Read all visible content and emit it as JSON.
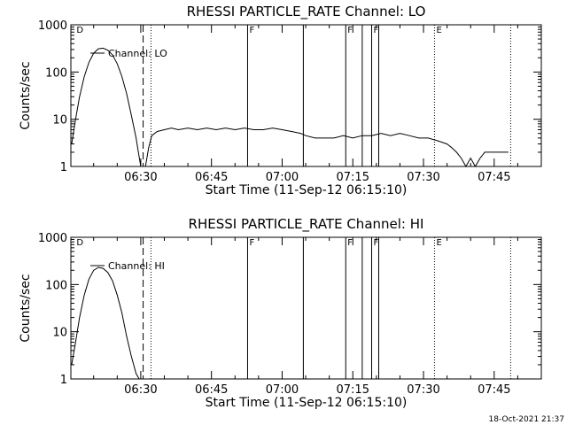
{
  "footer": {
    "timestamp": "18-Oct-2021 21:37"
  },
  "colors": {
    "line": "#000000",
    "background": "#ffffff"
  },
  "chart_data": [
    {
      "type": "line",
      "title": "RHESSI PARTICLE_RATE Channel: LO",
      "xlabel": "Start Time (11-Sep-12 06:15:10)",
      "ylabel": "Counts/sec",
      "y_scale": "log",
      "ylim": [
        1,
        1000
      ],
      "y_ticks": [
        {
          "value": 1,
          "label": "1"
        },
        {
          "value": 10,
          "label": "10"
        },
        {
          "value": 100,
          "label": "100"
        },
        {
          "value": 1000,
          "label": "1000"
        }
      ],
      "xlim": [
        "06:15:10",
        "07:55:00"
      ],
      "x_ticks": [
        "06:30",
        "06:45",
        "07:00",
        "07:15",
        "07:30",
        "07:45"
      ],
      "legend": {
        "label": "Channel: LO",
        "placement": "upper-left"
      },
      "markers": [
        {
          "time": "06:16:00",
          "style": "none",
          "label": "D"
        },
        {
          "time": "06:30:30",
          "style": "dashed",
          "label": ""
        },
        {
          "time": "06:32:10",
          "style": "dotted",
          "label": ""
        },
        {
          "time": "06:52:40",
          "style": "solid",
          "label": "F"
        },
        {
          "time": "07:04:30",
          "style": "solid",
          "label": ""
        },
        {
          "time": "07:13:30",
          "style": "solid",
          "label": "F"
        },
        {
          "time": "07:17:00",
          "style": "solid",
          "label": ""
        },
        {
          "time": "07:19:00",
          "style": "solid",
          "label": "F"
        },
        {
          "time": "07:20:30",
          "style": "solid",
          "label": ""
        },
        {
          "time": "07:32:20",
          "style": "dotted",
          "label": "E"
        },
        {
          "time": "07:48:30",
          "style": "dotted",
          "label": ""
        }
      ],
      "series": [
        {
          "name": "Channel: LO",
          "segments": [
            {
              "x": [
                "06:15:20",
                "06:16:10",
                "06:17:00",
                "06:18:00",
                "06:19:00",
                "06:20:00",
                "06:21:00",
                "06:22:00",
                "06:23:00",
                "06:24:00",
                "06:25:00",
                "06:26:00",
                "06:27:00",
                "06:28:00",
                "06:29:00",
                "06:29:30",
                "06:30:00"
              ],
              "y": [
                3,
                10,
                30,
                80,
                160,
                250,
                310,
                320,
                290,
                230,
                150,
                80,
                35,
                12,
                4,
                2,
                1
              ]
            },
            {
              "x": [
                "06:31:00",
                "06:31:40",
                "06:32:20",
                "06:33:30",
                "06:35:00",
                "06:36:30",
                "06:38:00",
                "06:40:00",
                "06:42:00",
                "06:44:00",
                "06:46:00",
                "06:48:00",
                "06:50:00",
                "06:52:00",
                "06:54:00",
                "06:56:00",
                "06:58:00",
                "07:00:00",
                "07:02:00",
                "07:04:00",
                "07:05:00",
                "07:07:00",
                "07:09:00",
                "07:11:00",
                "07:13:00",
                "07:15:00",
                "07:17:00",
                "07:19:00",
                "07:21:00",
                "07:23:00",
                "07:25:00",
                "07:27:00",
                "07:29:00",
                "07:31:00",
                "07:33:00",
                "07:35:00",
                "07:36:00",
                "07:37:00",
                "07:38:00",
                "07:39:00",
                "07:40:00",
                "07:41:00",
                "07:42:00",
                "07:43:00",
                "07:45:00",
                "07:47:00",
                "07:48:00"
              ],
              "y": [
                1,
                2.5,
                4.5,
                5.5,
                6,
                6.5,
                6,
                6.5,
                6,
                6.5,
                6,
                6.5,
                6,
                6.5,
                6,
                6,
                6.5,
                6,
                5.5,
                5,
                4.5,
                4,
                4,
                4,
                4.5,
                4,
                4.5,
                4.5,
                5,
                4.5,
                5,
                4.5,
                4,
                4,
                3.5,
                3,
                2.5,
                2,
                1.5,
                1,
                1.5,
                1,
                1.5,
                2,
                2,
                2,
                2
              ]
            }
          ]
        }
      ]
    },
    {
      "type": "line",
      "title": "RHESSI PARTICLE_RATE Channel: HI",
      "xlabel": "Start Time (11-Sep-12 06:15:10)",
      "ylabel": "Counts/sec",
      "y_scale": "log",
      "ylim": [
        1,
        1000
      ],
      "y_ticks": [
        {
          "value": 1,
          "label": "1"
        },
        {
          "value": 10,
          "label": "10"
        },
        {
          "value": 100,
          "label": "100"
        },
        {
          "value": 1000,
          "label": "1000"
        }
      ],
      "xlim": [
        "06:15:10",
        "07:55:00"
      ],
      "x_ticks": [
        "06:30",
        "06:45",
        "07:00",
        "07:15",
        "07:30",
        "07:45"
      ],
      "legend": {
        "label": "Channel: HI",
        "placement": "upper-left"
      },
      "markers": [
        {
          "time": "06:16:00",
          "style": "none",
          "label": "D"
        },
        {
          "time": "06:30:30",
          "style": "dashed",
          "label": ""
        },
        {
          "time": "06:32:10",
          "style": "dotted",
          "label": ""
        },
        {
          "time": "06:52:40",
          "style": "solid",
          "label": "F"
        },
        {
          "time": "07:04:30",
          "style": "solid",
          "label": ""
        },
        {
          "time": "07:13:30",
          "style": "solid",
          "label": "F"
        },
        {
          "time": "07:17:00",
          "style": "solid",
          "label": ""
        },
        {
          "time": "07:19:00",
          "style": "solid",
          "label": "F"
        },
        {
          "time": "07:20:30",
          "style": "solid",
          "label": ""
        },
        {
          "time": "07:32:20",
          "style": "dotted",
          "label": "E"
        },
        {
          "time": "07:48:30",
          "style": "dotted",
          "label": ""
        }
      ],
      "series": [
        {
          "name": "Channel: HI",
          "segments": [
            {
              "x": [
                "06:15:20",
                "06:16:10",
                "06:17:00",
                "06:18:00",
                "06:19:00",
                "06:20:00",
                "06:21:00",
                "06:22:00",
                "06:23:00",
                "06:24:00",
                "06:25:00",
                "06:26:00",
                "06:27:00",
                "06:28:00",
                "06:29:00",
                "06:29:40"
              ],
              "y": [
                2,
                6,
                20,
                60,
                130,
                200,
                230,
                220,
                180,
                120,
                60,
                25,
                8,
                3,
                1.3,
                1
              ]
            }
          ]
        }
      ]
    }
  ]
}
